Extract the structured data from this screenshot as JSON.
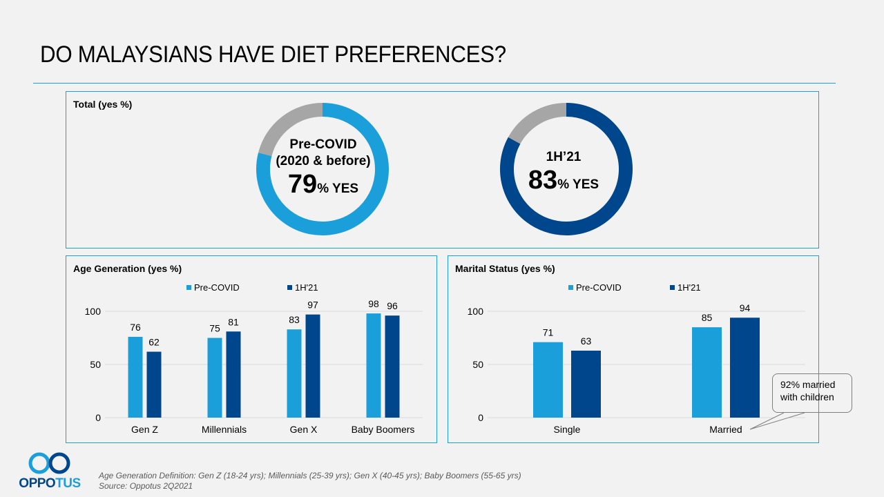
{
  "title": "DO MALAYSIANS HAVE DIET PREFERENCES?",
  "colors": {
    "pre_covid": "#1a9fda",
    "h1_21": "#00468c",
    "no": "#a6a6a6",
    "accent_line": "#1a9fda"
  },
  "total_panel": {
    "title": "Total (yes %)",
    "donuts": [
      {
        "label_line1": "Pre-COVID",
        "label_line2": "(2020 & before)",
        "value": "79",
        "suffix": "% YES"
      },
      {
        "label_line1": "1H’21",
        "label_line2": "",
        "value": "83",
        "suffix": "% YES"
      }
    ]
  },
  "age_panel": {
    "title": "Age Generation (yes %)"
  },
  "marital_panel": {
    "title": "Marital  Status (yes %)",
    "callout": [
      "92% married",
      "with children"
    ]
  },
  "legend": {
    "pre_covid": "Pre-COVID",
    "h1_21": "1H'21"
  },
  "footnote": {
    "definition": "Age Generation  Definition: Gen Z (18-24  yrs); Millennials  (25-39  yrs); Gen X (40-45  yrs); Baby Boomers (55-65  yrs)",
    "source": "Source: Oppotus 2Q2021"
  },
  "logo": {
    "text_dark": "OPPO",
    "text_light": "TUS"
  },
  "chart_data": [
    {
      "type": "pie",
      "title": "Pre-COVID (2020 & before)",
      "categories": [
        "Yes",
        "No"
      ],
      "values": [
        79,
        21
      ]
    },
    {
      "type": "pie",
      "title": "1H'21",
      "categories": [
        "Yes",
        "No"
      ],
      "values": [
        83,
        17
      ]
    },
    {
      "type": "bar",
      "title": "Age Generation (yes %)",
      "categories": [
        "Gen Z",
        "Millennials",
        "Gen X",
        "Baby Boomers"
      ],
      "series": [
        {
          "name": "Pre-COVID",
          "values": [
            76,
            75,
            83,
            98
          ]
        },
        {
          "name": "1H'21",
          "values": [
            62,
            81,
            97,
            96
          ]
        }
      ],
      "yticks": [
        0,
        50,
        100
      ],
      "ylim": [
        0,
        100
      ],
      "grid": true,
      "legend": "top"
    },
    {
      "type": "bar",
      "title": "Marital Status (yes %)",
      "categories": [
        "Single",
        "Married"
      ],
      "series": [
        {
          "name": "Pre-COVID",
          "values": [
            71,
            85
          ]
        },
        {
          "name": "1H'21",
          "values": [
            63,
            94
          ]
        }
      ],
      "yticks": [
        0,
        50,
        100
      ],
      "ylim": [
        0,
        100
      ],
      "grid": true,
      "legend": "top",
      "annotation": "92% married with children"
    }
  ]
}
